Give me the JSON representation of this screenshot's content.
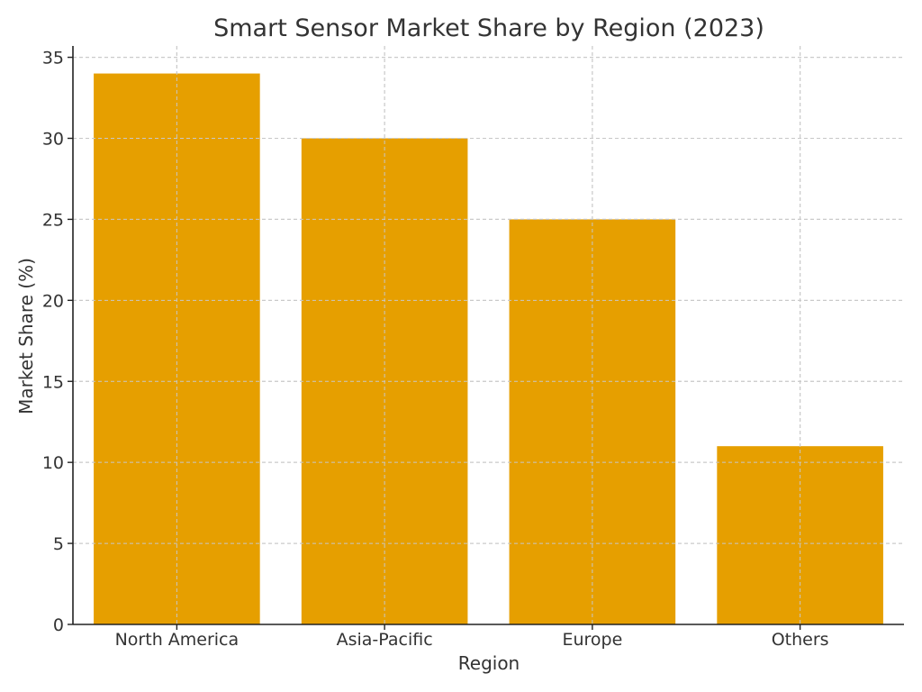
{
  "chart_data": {
    "type": "bar",
    "title": "Smart Sensor Market Share by Region (2023)",
    "xlabel": "Region",
    "ylabel": "Market Share (%)",
    "categories": [
      "North America",
      "Asia-Pacific",
      "Europe",
      "Others"
    ],
    "values": [
      34,
      30,
      25,
      11
    ],
    "ylim": [
      0,
      35.7
    ],
    "yticks": [
      0,
      5,
      10,
      15,
      20,
      25,
      30,
      35
    ],
    "grid": true,
    "bar_color": "#e69f00",
    "legend": "none"
  }
}
